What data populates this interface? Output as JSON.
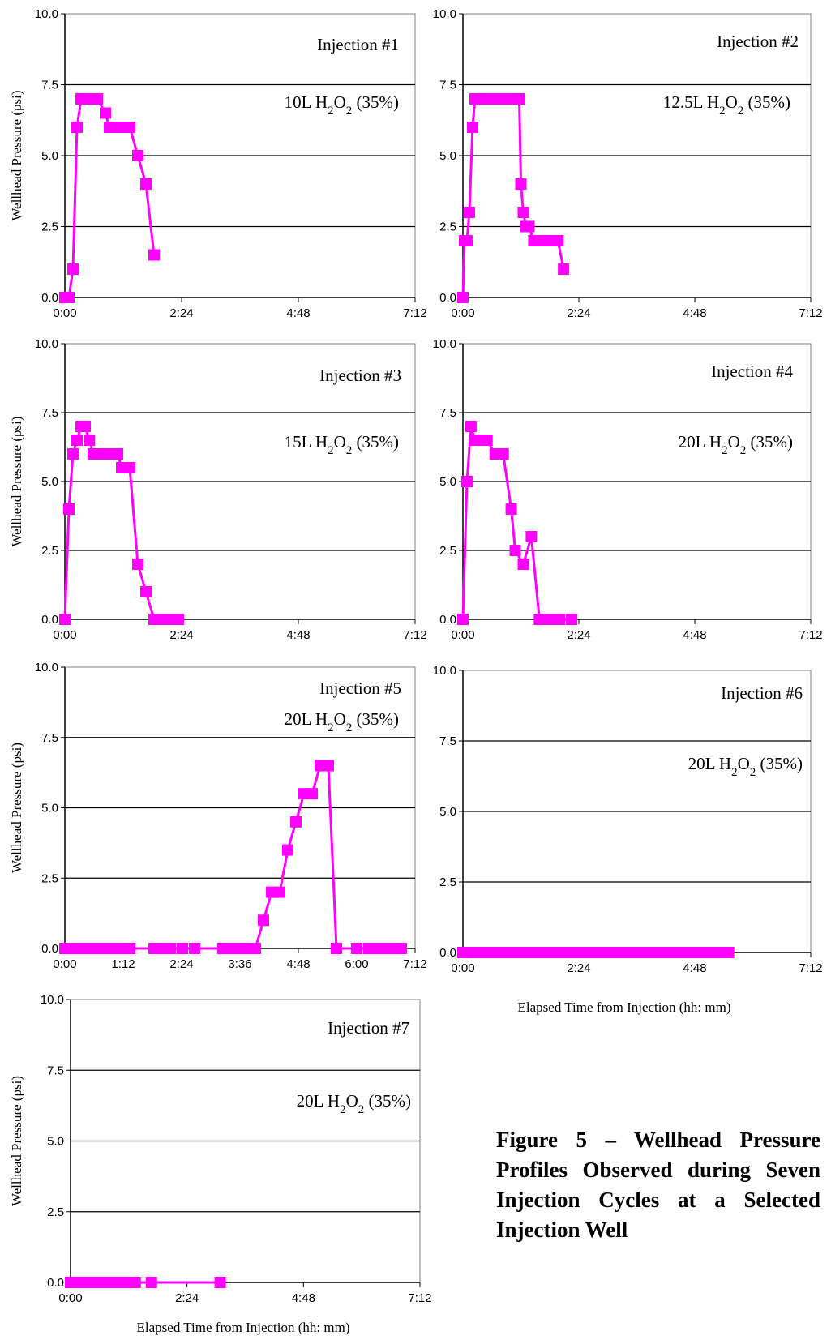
{
  "figure": {
    "caption": "Figure 5 – Wellhead Pressure Profiles Observed during Seven Injection Cycles at a Selected Injection Well",
    "shared_xlabel": "Elapsed Time from Injection (hh: mm)"
  },
  "chart_data": [
    {
      "type": "line",
      "title": "Injection #1",
      "annotation": "10L H2O2 (35%)",
      "ylabel": "Wellhead Pressure (psi)",
      "xlabel": "",
      "ylim": [
        0,
        10
      ],
      "yticks": [
        "0.0",
        "2.5",
        "5.0",
        "7.5",
        "10.0"
      ],
      "xlim_minutes": [
        0,
        432
      ],
      "xticks": [
        "0:00",
        "2:24",
        "4:48",
        "7:12"
      ],
      "grid": "horizontal",
      "color": "#ff00ff",
      "series": [
        {
          "x": [
            "0:00",
            "0:05",
            "0:10",
            "0:15",
            "0:20",
            "0:25",
            "0:30",
            "0:40",
            "0:50",
            "0:55",
            "1:00",
            "1:05",
            "1:10",
            "1:20",
            "1:30",
            "1:40",
            "1:50"
          ],
          "y": [
            0,
            0,
            1,
            6,
            7,
            7,
            7,
            7,
            6.5,
            6,
            6,
            6,
            6,
            6,
            5,
            4,
            1.5
          ]
        }
      ]
    },
    {
      "type": "line",
      "title": "Injection #2",
      "annotation": "12.5L H2O2 (35%)",
      "ylabel": "",
      "xlabel": "",
      "ylim": [
        0,
        10
      ],
      "yticks": [
        "0.0",
        "2.5",
        "5.0",
        "7.5",
        "10.0"
      ],
      "xlim_minutes": [
        0,
        432
      ],
      "xticks": [
        "0:00",
        "2:24",
        "4:48",
        "7:12"
      ],
      "grid": "horizontal",
      "color": "#ff00ff",
      "series": [
        {
          "x": [
            "0:00",
            "0:02",
            "0:05",
            "0:08",
            "0:12",
            "0:15",
            "0:20",
            "0:30",
            "0:40",
            "0:50",
            "1:00",
            "1:05",
            "1:10",
            "1:12",
            "1:15",
            "1:18",
            "1:22",
            "1:28",
            "1:35",
            "1:42",
            "1:50",
            "1:58",
            "2:05"
          ],
          "y": [
            0,
            2,
            2,
            3,
            6,
            7,
            7,
            7,
            7,
            7,
            7,
            7,
            7,
            4,
            3,
            2.5,
            2.5,
            2,
            2,
            2,
            2,
            2,
            1
          ]
        }
      ]
    },
    {
      "type": "line",
      "title": "Injection #3",
      "annotation": "15L H2O2 (35%)",
      "ylabel": "Wellhead Pressure (psi)",
      "xlabel": "",
      "ylim": [
        0,
        10
      ],
      "yticks": [
        "0.0",
        "2.5",
        "5.0",
        "7.5",
        "10.0"
      ],
      "xlim_minutes": [
        0,
        432
      ],
      "xticks": [
        "0:00",
        "2:24",
        "4:48",
        "7:12"
      ],
      "grid": "horizontal",
      "color": "#ff00ff",
      "series": [
        {
          "x": [
            "0:00",
            "0:05",
            "0:10",
            "0:15",
            "0:20",
            "0:25",
            "0:30",
            "0:35",
            "0:40",
            "0:50",
            "1:00",
            "1:05",
            "1:10",
            "1:20",
            "1:30",
            "1:40",
            "1:50",
            "2:00",
            "2:05",
            "2:10",
            "2:15",
            "2:20"
          ],
          "y": [
            0,
            4,
            6,
            6.5,
            7,
            7,
            6.5,
            6,
            6,
            6,
            6,
            6,
            5.5,
            5.5,
            2,
            1,
            0,
            0,
            0,
            0,
            0,
            0
          ]
        }
      ]
    },
    {
      "type": "line",
      "title": "Injection #4",
      "annotation": "20L H2O2 (35%)",
      "ylabel": "",
      "xlabel": "",
      "ylim": [
        0,
        10
      ],
      "yticks": [
        "0.0",
        "2.5",
        "5.0",
        "7.5",
        "10.0"
      ],
      "xlim_minutes": [
        0,
        432
      ],
      "xticks": [
        "0:00",
        "2:24",
        "4:48",
        "7:12"
      ],
      "grid": "horizontal",
      "color": "#ff00ff",
      "series": [
        {
          "x": [
            "0:00",
            "0:05",
            "0:10",
            "0:15",
            "0:20",
            "0:25",
            "0:30",
            "0:40",
            "0:45",
            "0:50",
            "1:00",
            "1:05",
            "1:15",
            "1:25",
            "1:35",
            "1:40",
            "1:50",
            "1:55",
            "2:00",
            "2:15"
          ],
          "y": [
            0,
            5,
            7,
            6.5,
            6.5,
            6.5,
            6.5,
            6,
            6,
            6,
            4,
            2.5,
            2,
            3,
            0,
            0,
            0,
            0,
            0,
            0
          ]
        }
      ]
    },
    {
      "type": "line",
      "title": "Injection #5",
      "annotation": "20L H2O2 (35%)",
      "ylabel": "Wellhead Pressure (psi)",
      "xlabel": "",
      "ylim": [
        0,
        10
      ],
      "yticks": [
        "0.0",
        "2.5",
        "5.0",
        "7.5",
        "10.0"
      ],
      "xlim_minutes": [
        0,
        432
      ],
      "xticks": [
        "0:00",
        "1:12",
        "2:24",
        "3:36",
        "4:48",
        "6:00",
        "7:12"
      ],
      "grid": "horizontal",
      "color": "#ff00ff",
      "series": [
        {
          "x": [
            "0:00",
            "0:10",
            "0:20",
            "0:30",
            "0:40",
            "0:50",
            "1:00",
            "1:10",
            "1:20",
            "1:50",
            "2:00",
            "2:10",
            "2:25",
            "2:40",
            "3:15",
            "3:25",
            "3:35",
            "3:45",
            "3:55",
            "4:05",
            "4:15",
            "4:25",
            "4:35",
            "4:45",
            "4:55",
            "5:05",
            "5:15",
            "5:25",
            "5:35",
            "6:00",
            "6:15",
            "6:25",
            "6:35",
            "6:45",
            "6:55"
          ],
          "y": [
            0,
            0,
            0,
            0,
            0,
            0,
            0,
            0,
            0,
            0,
            0,
            0,
            0,
            0,
            0,
            0,
            0,
            0,
            0,
            1,
            2,
            2,
            3.5,
            4.5,
            5.5,
            5.5,
            6.5,
            6.5,
            0,
            0,
            0,
            0,
            0,
            0,
            0
          ]
        }
      ]
    },
    {
      "type": "line",
      "title": "Injection #6",
      "annotation": "20L H2O2 (35%)",
      "ylabel": "",
      "xlabel": "",
      "ylim": [
        0,
        10
      ],
      "yticks": [
        "0.0",
        "2.5",
        "5.0",
        "7.5",
        "10.0"
      ],
      "xlim_minutes": [
        0,
        432
      ],
      "xticks": [
        "0:00",
        "2:24",
        "4:48",
        "7:12"
      ],
      "grid": "horizontal",
      "color": "#ff00ff",
      "series": [
        {
          "x": [
            "0:00",
            "0:10",
            "0:20",
            "0:30",
            "0:40",
            "0:50",
            "1:00",
            "1:10",
            "1:20",
            "1:30",
            "1:40",
            "1:50",
            "2:00",
            "2:10",
            "2:20",
            "2:30",
            "2:40",
            "2:50",
            "3:00",
            "3:10",
            "3:20",
            "3:30",
            "3:40",
            "3:50",
            "4:00",
            "4:10",
            "4:20",
            "4:30",
            "4:40",
            "4:50",
            "5:00",
            "5:10",
            "5:20",
            "5:30"
          ],
          "y": [
            0,
            0,
            0,
            0,
            0,
            0,
            0,
            0,
            0,
            0,
            0,
            0,
            0,
            0,
            0,
            0,
            0,
            0,
            0,
            0,
            0,
            0,
            0,
            0,
            0,
            0,
            0,
            0,
            0,
            0,
            0,
            0,
            0,
            0
          ]
        }
      ]
    },
    {
      "type": "line",
      "title": "Injection #7",
      "annotation": "20L H2O2 (35%)",
      "ylabel": "Wellhead Pressure (psi)",
      "xlabel": "",
      "ylim": [
        0,
        10
      ],
      "yticks": [
        "0.0",
        "2.5",
        "5.0",
        "7.5",
        "10.0"
      ],
      "xlim_minutes": [
        0,
        432
      ],
      "xticks": [
        "0:00",
        "2:24",
        "4:48",
        "7:12"
      ],
      "grid": "horizontal",
      "color": "#ff00ff",
      "series": [
        {
          "x": [
            "0:00",
            "0:10",
            "0:20",
            "0:30",
            "0:40",
            "0:50",
            "1:00",
            "1:10",
            "1:20",
            "1:40",
            "3:05"
          ],
          "y": [
            0,
            0,
            0,
            0,
            0,
            0,
            0,
            0,
            0,
            0,
            0
          ]
        }
      ]
    }
  ]
}
